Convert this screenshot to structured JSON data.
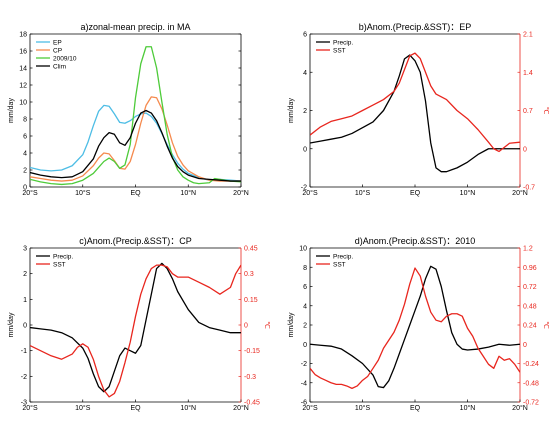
{
  "chart_data": [
    {
      "type": "line",
      "title": "a)zonal-mean precip. in MA",
      "xlabel": "",
      "ylabel": "mm/day",
      "xlim": [
        -20,
        20
      ],
      "ylim": [
        0,
        18
      ],
      "xticks": [
        -20,
        -10,
        0,
        10,
        20
      ],
      "xticklabels": [
        "20°S",
        "10°S",
        "EQ",
        "10°N",
        "20°N"
      ],
      "yticks": [
        0,
        2,
        4,
        6,
        8,
        10,
        12,
        14,
        16,
        18
      ],
      "yticklabels": [
        "0",
        "2",
        "4",
        "6",
        "8",
        "10",
        "12",
        "14",
        "16",
        "18"
      ],
      "legend_position": "top-left",
      "series": [
        {
          "name": "EP",
          "color": "#4dbde5",
          "axis": "left",
          "x": [
            -20,
            -18,
            -16,
            -14,
            -12,
            -10,
            -9,
            -8,
            -7,
            -6,
            -5,
            -4,
            -3,
            -2,
            -1,
            0,
            1,
            2,
            3,
            4,
            5,
            6,
            7,
            8,
            9,
            10,
            12,
            14,
            16,
            18,
            20
          ],
          "y": [
            2.3,
            2.0,
            1.9,
            2.0,
            2.5,
            3.8,
            5.3,
            7.2,
            8.9,
            9.6,
            9.5,
            8.6,
            7.6,
            7.5,
            7.8,
            8.3,
            8.6,
            8.7,
            8.3,
            7.5,
            6.3,
            5.0,
            3.8,
            2.8,
            2.1,
            1.6,
            1.1,
            0.8,
            0.9,
            0.8,
            0.7
          ]
        },
        {
          "name": "CP",
          "color": "#f58a4e",
          "axis": "left",
          "x": [
            -20,
            -18,
            -16,
            -14,
            -12,
            -10,
            -8,
            -7,
            -6,
            -5,
            -4,
            -3,
            -2,
            -1,
            0,
            1,
            2,
            3,
            4,
            5,
            6,
            7,
            8,
            9,
            10,
            12,
            14,
            16,
            18,
            20
          ],
          "y": [
            1.2,
            1.0,
            0.8,
            0.7,
            0.8,
            1.3,
            2.5,
            3.4,
            4.0,
            3.9,
            3.1,
            2.2,
            2.1,
            3.0,
            5.0,
            7.5,
            9.6,
            10.6,
            10.5,
            9.2,
            7.3,
            5.2,
            3.6,
            2.6,
            1.9,
            1.2,
            0.8,
            0.7,
            0.7,
            0.7
          ]
        },
        {
          "name": "2009/10",
          "color": "#4ecb3a",
          "axis": "left",
          "x": [
            -20,
            -18,
            -16,
            -14,
            -12,
            -10,
            -8,
            -7,
            -6,
            -5,
            -4,
            -3,
            -2,
            -1,
            0,
            1,
            2,
            3,
            4,
            5,
            6,
            7,
            8,
            9,
            10,
            11,
            12,
            14,
            15,
            16,
            18,
            20
          ],
          "y": [
            0.9,
            0.6,
            0.4,
            0.3,
            0.4,
            0.8,
            1.6,
            2.3,
            3.0,
            3.4,
            3.0,
            2.2,
            2.6,
            5.0,
            10.5,
            14.5,
            16.5,
            16.5,
            14.0,
            10.0,
            6.2,
            3.5,
            2.0,
            1.2,
            0.8,
            0.5,
            0.4,
            0.5,
            1.0,
            0.9,
            0.7,
            0.6
          ]
        },
        {
          "name": "Clim",
          "color": "#000000",
          "axis": "left",
          "x": [
            -20,
            -18,
            -16,
            -14,
            -12,
            -10,
            -8,
            -7,
            -6,
            -5,
            -4,
            -3,
            -2,
            -1,
            0,
            1,
            2,
            3,
            4,
            5,
            6,
            7,
            8,
            9,
            10,
            12,
            14,
            16,
            18,
            20
          ],
          "y": [
            1.7,
            1.4,
            1.2,
            1.1,
            1.2,
            1.8,
            3.3,
            4.8,
            5.8,
            6.4,
            6.2,
            5.2,
            4.9,
            5.8,
            7.5,
            8.7,
            9.0,
            8.7,
            7.8,
            6.4,
            4.8,
            3.4,
            2.4,
            1.8,
            1.4,
            1.0,
            0.9,
            0.8,
            0.7,
            0.7
          ]
        }
      ]
    },
    {
      "type": "line",
      "title": "b)Anom.(Precip.&SST)：EP",
      "xlabel": "",
      "ylabel": "mm/day",
      "ylabel_right": "℃",
      "xlim": [
        -20,
        20
      ],
      "ylim": [
        -2,
        6
      ],
      "ylim_right": [
        -0.7,
        2.1
      ],
      "xticks": [
        -20,
        -10,
        0,
        10,
        20
      ],
      "xticklabels": [
        "20°S",
        "10°S",
        "EQ",
        "10°N",
        "20°N"
      ],
      "yticks": [
        -2,
        0,
        2,
        4,
        6
      ],
      "yticklabels": [
        "-2",
        "0",
        "2",
        "4",
        "6"
      ],
      "yticks_right": [
        -0.7,
        0,
        0.7,
        1.4,
        2.1
      ],
      "yticklabels_right": [
        "-0.7",
        "0",
        "0.7",
        "1.4",
        "2.1"
      ],
      "legend_position": "top-left",
      "series": [
        {
          "name": "Precip.",
          "color": "#000000",
          "axis": "left",
          "x": [
            -20,
            -18,
            -16,
            -14,
            -12,
            -10,
            -8,
            -6,
            -4,
            -3,
            -2,
            -1,
            0,
            1,
            2,
            3,
            4,
            5,
            6,
            7,
            8,
            10,
            12,
            14,
            16,
            18,
            20
          ],
          "y": [
            0.3,
            0.4,
            0.5,
            0.6,
            0.8,
            1.1,
            1.4,
            2.0,
            3.0,
            3.8,
            4.7,
            4.9,
            4.6,
            4.0,
            2.5,
            0.3,
            -1.0,
            -1.2,
            -1.2,
            -1.1,
            -1.0,
            -0.7,
            -0.3,
            0.0,
            0.0,
            0.0,
            0.0
          ]
        },
        {
          "name": "SST",
          "color": "#e8261e",
          "axis": "right",
          "x": [
            -20,
            -18,
            -16,
            -14,
            -12,
            -10,
            -8,
            -6,
            -4,
            -3,
            -2,
            -1,
            0,
            1,
            2,
            3,
            4,
            5,
            6,
            8,
            10,
            12,
            14,
            15,
            16,
            18,
            20
          ],
          "y": [
            0.25,
            0.4,
            0.5,
            0.55,
            0.6,
            0.7,
            0.8,
            0.9,
            1.05,
            1.2,
            1.45,
            1.7,
            1.75,
            1.65,
            1.4,
            1.15,
            1.0,
            0.95,
            0.9,
            0.7,
            0.55,
            0.35,
            0.12,
            0.0,
            -0.05,
            0.1,
            0.12
          ]
        }
      ]
    },
    {
      "type": "line",
      "title": "c)Anom.(Precip.&SST)：CP",
      "xlabel": "",
      "ylabel": "mm/day",
      "ylabel_right": "℃",
      "xlim": [
        -20,
        20
      ],
      "ylim": [
        -3,
        3
      ],
      "ylim_right": [
        -0.45,
        0.45
      ],
      "xticks": [
        -20,
        -10,
        0,
        10,
        20
      ],
      "xticklabels": [
        "20°S",
        "10°S",
        "EQ",
        "10°N",
        "20°N"
      ],
      "yticks": [
        -3,
        -2,
        -1,
        0,
        1,
        2,
        3
      ],
      "yticklabels": [
        "-3",
        "-2",
        "-1",
        "0",
        "1",
        "2",
        "3"
      ],
      "yticks_right": [
        -0.45,
        -0.3,
        -0.15,
        0,
        0.15,
        0.3,
        0.45
      ],
      "yticklabels_right": [
        "-0.45",
        "-0.3",
        "-0.15",
        "0",
        "0.15",
        "0.3",
        "0.45"
      ],
      "legend_position": "top-left",
      "series": [
        {
          "name": "Precip.",
          "color": "#000000",
          "axis": "left",
          "x": [
            -20,
            -18,
            -16,
            -14,
            -12,
            -10,
            -9,
            -8,
            -7,
            -6,
            -5,
            -4,
            -3,
            -2,
            -1,
            0,
            1,
            2,
            3,
            4,
            5,
            6,
            7,
            8,
            10,
            12,
            14,
            16,
            18,
            20
          ],
          "y": [
            -0.1,
            -0.15,
            -0.2,
            -0.3,
            -0.5,
            -0.9,
            -1.3,
            -1.9,
            -2.4,
            -2.6,
            -2.4,
            -1.8,
            -1.2,
            -0.9,
            -1.0,
            -1.1,
            -0.8,
            0.2,
            1.2,
            2.2,
            2.4,
            2.2,
            1.8,
            1.3,
            0.6,
            0.1,
            -0.1,
            -0.2,
            -0.3,
            -0.3
          ]
        },
        {
          "name": "SST",
          "color": "#e8261e",
          "axis": "right",
          "x": [
            -20,
            -18,
            -16,
            -14,
            -12,
            -11,
            -10,
            -9,
            -8,
            -7,
            -6,
            -5,
            -4,
            -3,
            -2,
            -1,
            0,
            1,
            2,
            3,
            4,
            5,
            6,
            7,
            8,
            10,
            12,
            14,
            16,
            18,
            19,
            20
          ],
          "y": [
            -0.12,
            -0.15,
            -0.18,
            -0.2,
            -0.17,
            -0.13,
            -0.11,
            -0.13,
            -0.2,
            -0.3,
            -0.38,
            -0.42,
            -0.4,
            -0.33,
            -0.22,
            -0.1,
            0.05,
            0.18,
            0.27,
            0.33,
            0.35,
            0.35,
            0.34,
            0.3,
            0.28,
            0.28,
            0.25,
            0.22,
            0.18,
            0.22,
            0.3,
            0.35
          ]
        }
      ]
    },
    {
      "type": "line",
      "title": "d)Anom.(Precip.&SST)：2010",
      "xlabel": "",
      "ylabel": "mm/day",
      "ylabel_right": "℃",
      "xlim": [
        -20,
        20
      ],
      "ylim": [
        -6,
        10
      ],
      "ylim_right": [
        -0.72,
        1.2
      ],
      "xticks": [
        -20,
        -10,
        0,
        10,
        20
      ],
      "xticklabels": [
        "20°S",
        "10°S",
        "EQ",
        "10°N",
        "20°N"
      ],
      "yticks": [
        -6,
        -4,
        -2,
        0,
        2,
        4,
        6,
        8,
        10
      ],
      "yticklabels": [
        "-6",
        "-4",
        "-2",
        "0",
        "2",
        "4",
        "6",
        "8",
        "10"
      ],
      "yticks_right": [
        -0.72,
        -0.48,
        -0.24,
        0,
        0.24,
        0.48,
        0.72,
        0.96,
        1.2
      ],
      "yticklabels_right": [
        "-0.72",
        "-0.48",
        "-0.24",
        "0",
        "0.24",
        "0.48",
        "0.72",
        "0.96",
        "1.2"
      ],
      "legend_position": "top-left",
      "series": [
        {
          "name": "Precip.",
          "color": "#000000",
          "axis": "left",
          "x": [
            -20,
            -18,
            -16,
            -14,
            -12,
            -10,
            -8,
            -7,
            -6,
            -5,
            -4,
            -3,
            -2,
            -1,
            0,
            1,
            2,
            3,
            4,
            5,
            6,
            7,
            8,
            9,
            10,
            12,
            14,
            16,
            18,
            20
          ],
          "y": [
            0.0,
            -0.1,
            -0.2,
            -0.5,
            -1.2,
            -2.0,
            -3.2,
            -4.4,
            -4.5,
            -3.8,
            -2.5,
            -1.0,
            0.5,
            2.0,
            3.5,
            5.0,
            6.8,
            8.1,
            7.8,
            6.0,
            3.5,
            1.2,
            0.0,
            -0.5,
            -0.6,
            -0.5,
            -0.3,
            0.0,
            -0.1,
            0.0
          ]
        },
        {
          "name": "SST",
          "color": "#e8261e",
          "axis": "right",
          "x": [
            -20,
            -19,
            -18,
            -17,
            -16,
            -15,
            -14,
            -13,
            -12,
            -11,
            -10,
            -9,
            -8,
            -7,
            -6,
            -5,
            -4,
            -3,
            -2,
            -1,
            0,
            1,
            2,
            3,
            4,
            5,
            6,
            7,
            8,
            9,
            10,
            11,
            12,
            13,
            14,
            15,
            16,
            17,
            18,
            19,
            20
          ],
          "y": [
            -0.3,
            -0.38,
            -0.42,
            -0.45,
            -0.48,
            -0.5,
            -0.5,
            -0.52,
            -0.55,
            -0.52,
            -0.45,
            -0.4,
            -0.3,
            -0.2,
            -0.05,
            0.05,
            0.15,
            0.3,
            0.5,
            0.75,
            0.95,
            0.85,
            0.6,
            0.4,
            0.3,
            0.28,
            0.35,
            0.38,
            0.38,
            0.35,
            0.2,
            0.1,
            -0.05,
            -0.15,
            -0.25,
            -0.3,
            -0.15,
            -0.2,
            -0.18,
            -0.25,
            -0.35
          ]
        }
      ]
    }
  ]
}
